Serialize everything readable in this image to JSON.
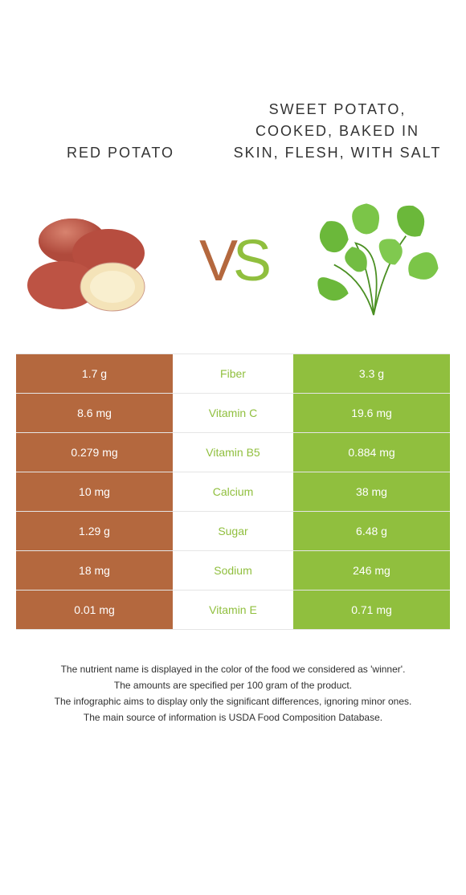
{
  "colors": {
    "left": "#b4683e",
    "right": "#90bf3e",
    "border": "#e5e5e5",
    "text": "#303030",
    "white": "#ffffff"
  },
  "titles": {
    "left": "RED POTATO",
    "right": "SWEET POTATO, COOKED, BAKED IN SKIN, FLESH, WITH SALT"
  },
  "vs": {
    "v": "V",
    "s": "S"
  },
  "table": {
    "rows": [
      {
        "left": "1.7 g",
        "label": "Fiber",
        "right": "3.3 g",
        "winner": "right"
      },
      {
        "left": "8.6 mg",
        "label": "Vitamin C",
        "right": "19.6 mg",
        "winner": "right"
      },
      {
        "left": "0.279 mg",
        "label": "Vitamin B5",
        "right": "0.884 mg",
        "winner": "right"
      },
      {
        "left": "10 mg",
        "label": "Calcium",
        "right": "38 mg",
        "winner": "right"
      },
      {
        "left": "1.29 g",
        "label": "Sugar",
        "right": "6.48 g",
        "winner": "right"
      },
      {
        "left": "18 mg",
        "label": "Sodium",
        "right": "246 mg",
        "winner": "right"
      },
      {
        "left": "0.01 mg",
        "label": "Vitamin E",
        "right": "0.71 mg",
        "winner": "right"
      }
    ]
  },
  "footnotes": [
    "The nutrient name is displayed in the color of the food we considered as 'winner'.",
    "The amounts are specified per 100 gram of the product.",
    "The infographic aims to display only the significant differences, ignoring minor ones.",
    "The main source of information is USDA Food Composition Database."
  ]
}
